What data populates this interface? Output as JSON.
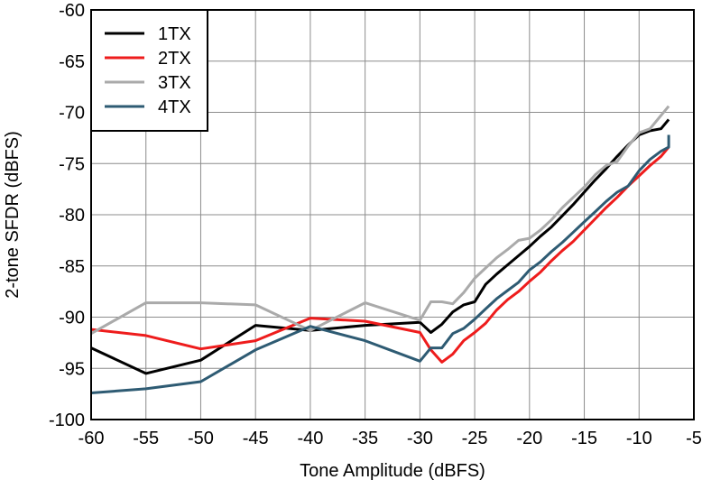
{
  "chart_data": {
    "type": "line",
    "xlabel": "Tone Amplitude (dBFS)",
    "ylabel": "2-tone SFDR (dBFS)",
    "xlim": [
      -60,
      -5
    ],
    "ylim": [
      -100,
      -60
    ],
    "xticks": [
      -60,
      -55,
      -50,
      -45,
      -40,
      -35,
      -30,
      -25,
      -20,
      -15,
      -10,
      -5
    ],
    "yticks": [
      -100,
      -95,
      -90,
      -85,
      -80,
      -75,
      -70,
      -65,
      -60
    ],
    "xtick_labels": [
      "-60",
      "-55",
      "-50",
      "-45",
      "-40",
      "-35",
      "-30",
      "-25",
      "-20",
      "-15",
      "-10",
      "-5"
    ],
    "ytick_labels": [
      "-100",
      "-95",
      "-90",
      "-85",
      "-80",
      "-75",
      "-70",
      "-65",
      "-60"
    ],
    "grid": true,
    "legend_position": "top-left",
    "series": [
      {
        "name": "1TX",
        "color": "#000000",
        "points": [
          [
            -60,
            -93.0
          ],
          [
            -55,
            -95.5
          ],
          [
            -50,
            -94.2
          ],
          [
            -45,
            -90.8
          ],
          [
            -40,
            -91.3
          ],
          [
            -35,
            -90.8
          ],
          [
            -30,
            -90.5
          ],
          [
            -29,
            -91.5
          ],
          [
            -28,
            -90.7
          ],
          [
            -27,
            -89.5
          ],
          [
            -26,
            -88.8
          ],
          [
            -25,
            -88.5
          ],
          [
            -24,
            -86.8
          ],
          [
            -23,
            -85.8
          ],
          [
            -22,
            -84.9
          ],
          [
            -21,
            -84.0
          ],
          [
            -20,
            -83.1
          ],
          [
            -19,
            -82.1
          ],
          [
            -18,
            -81.2
          ],
          [
            -17,
            -80.1
          ],
          [
            -16,
            -79.0
          ],
          [
            -15,
            -77.8
          ],
          [
            -14,
            -76.6
          ],
          [
            -13,
            -75.5
          ],
          [
            -12,
            -74.3
          ],
          [
            -11,
            -73.2
          ],
          [
            -10,
            -72.2
          ],
          [
            -9,
            -71.8
          ],
          [
            -8,
            -71.6
          ],
          [
            -7.3,
            -70.7
          ]
        ]
      },
      {
        "name": "2TX",
        "color": "#ee1c1c",
        "points": [
          [
            -60,
            -91.2
          ],
          [
            -55,
            -91.8
          ],
          [
            -50,
            -93.1
          ],
          [
            -45,
            -92.3
          ],
          [
            -40,
            -90.1
          ],
          [
            -35,
            -90.4
          ],
          [
            -30,
            -91.5
          ],
          [
            -29,
            -93.2
          ],
          [
            -28,
            -94.4
          ],
          [
            -27,
            -93.6
          ],
          [
            -26,
            -92.3
          ],
          [
            -25,
            -91.5
          ],
          [
            -24,
            -90.6
          ],
          [
            -23,
            -89.3
          ],
          [
            -22,
            -88.3
          ],
          [
            -21,
            -87.5
          ],
          [
            -20,
            -86.5
          ],
          [
            -19,
            -85.6
          ],
          [
            -18,
            -84.5
          ],
          [
            -17,
            -83.5
          ],
          [
            -16,
            -82.6
          ],
          [
            -15,
            -81.5
          ],
          [
            -14,
            -80.4
          ],
          [
            -13,
            -79.3
          ],
          [
            -12,
            -78.3
          ],
          [
            -11,
            -77.2
          ],
          [
            -10,
            -76.2
          ],
          [
            -9,
            -75.2
          ],
          [
            -8,
            -74.3
          ],
          [
            -7.3,
            -73.4
          ]
        ]
      },
      {
        "name": "3TX",
        "color": "#aaaaaa",
        "points": [
          [
            -60,
            -91.6
          ],
          [
            -55,
            -88.6
          ],
          [
            -50,
            -88.6
          ],
          [
            -45,
            -88.8
          ],
          [
            -40,
            -91.3
          ],
          [
            -35,
            -88.6
          ],
          [
            -30,
            -90.3
          ],
          [
            -29,
            -88.5
          ],
          [
            -28,
            -88.5
          ],
          [
            -27,
            -88.7
          ],
          [
            -26,
            -87.6
          ],
          [
            -25,
            -86.2
          ],
          [
            -24,
            -85.2
          ],
          [
            -23,
            -84.2
          ],
          [
            -22,
            -83.4
          ],
          [
            -21,
            -82.5
          ],
          [
            -20,
            -82.3
          ],
          [
            -19,
            -81.5
          ],
          [
            -18,
            -80.5
          ],
          [
            -17,
            -79.3
          ],
          [
            -16,
            -78.3
          ],
          [
            -15,
            -77.3
          ],
          [
            -14,
            -76.1
          ],
          [
            -13,
            -75.2
          ],
          [
            -12,
            -74.8
          ],
          [
            -11,
            -73.3
          ],
          [
            -10,
            -72.0
          ],
          [
            -9,
            -71.6
          ],
          [
            -8,
            -70.3
          ],
          [
            -7.3,
            -69.4
          ]
        ]
      },
      {
        "name": "4TX",
        "color": "#2e5b73",
        "points": [
          [
            -60,
            -97.4
          ],
          [
            -55,
            -97.0
          ],
          [
            -50,
            -96.3
          ],
          [
            -45,
            -93.2
          ],
          [
            -40,
            -90.9
          ],
          [
            -35,
            -92.3
          ],
          [
            -30,
            -94.3
          ],
          [
            -29,
            -93.0
          ],
          [
            -28,
            -93.0
          ],
          [
            -27,
            -91.6
          ],
          [
            -26,
            -91.1
          ],
          [
            -25,
            -90.2
          ],
          [
            -24,
            -89.2
          ],
          [
            -23,
            -88.2
          ],
          [
            -22,
            -87.4
          ],
          [
            -21,
            -86.6
          ],
          [
            -20,
            -85.4
          ],
          [
            -19,
            -84.6
          ],
          [
            -18,
            -83.6
          ],
          [
            -17,
            -82.7
          ],
          [
            -16,
            -81.7
          ],
          [
            -15,
            -80.7
          ],
          [
            -14,
            -79.7
          ],
          [
            -13,
            -78.7
          ],
          [
            -12,
            -77.8
          ],
          [
            -11,
            -77.2
          ],
          [
            -10,
            -75.7
          ],
          [
            -9,
            -74.6
          ],
          [
            -8,
            -73.8
          ],
          [
            -7.3,
            -73.4
          ],
          [
            -7.3,
            -72.2
          ]
        ]
      }
    ]
  }
}
